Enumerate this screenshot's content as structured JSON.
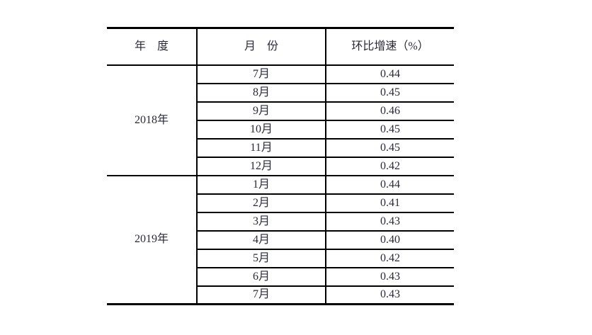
{
  "colors": {
    "text": "#2a2a38",
    "border": "#000000",
    "background": "#ffffff"
  },
  "table": {
    "headers": {
      "year": "年　度",
      "month": "月　份",
      "growth": "环比增速（%）"
    },
    "groups": [
      {
        "year": "2018年",
        "rows": [
          {
            "month": "7月",
            "value": "0.44"
          },
          {
            "month": "8月",
            "value": "0.45"
          },
          {
            "month": "9月",
            "value": "0.46"
          },
          {
            "month": "10月",
            "value": "0.45"
          },
          {
            "month": "11月",
            "value": "0.45"
          },
          {
            "month": "12月",
            "value": "0.42"
          }
        ]
      },
      {
        "year": "2019年",
        "rows": [
          {
            "month": "1月",
            "value": "0.44"
          },
          {
            "month": "2月",
            "value": "0.41"
          },
          {
            "month": "3月",
            "value": "0.43"
          },
          {
            "month": "4月",
            "value": "0.40"
          },
          {
            "month": "5月",
            "value": "0.42"
          },
          {
            "month": "6月",
            "value": "0.43"
          },
          {
            "month": "7月",
            "value": "0.43"
          }
        ]
      }
    ]
  },
  "chart_data": {
    "type": "table",
    "title": "",
    "columns": [
      "年度",
      "月份",
      "环比增速（%）"
    ],
    "rows": [
      [
        "2018年",
        "7月",
        0.44
      ],
      [
        "2018年",
        "8月",
        0.45
      ],
      [
        "2018年",
        "9月",
        0.46
      ],
      [
        "2018年",
        "10月",
        0.45
      ],
      [
        "2018年",
        "11月",
        0.45
      ],
      [
        "2018年",
        "12月",
        0.42
      ],
      [
        "2019年",
        "1月",
        0.44
      ],
      [
        "2019年",
        "2月",
        0.41
      ],
      [
        "2019年",
        "3月",
        0.43
      ],
      [
        "2019年",
        "4月",
        0.4
      ],
      [
        "2019年",
        "5月",
        0.42
      ],
      [
        "2019年",
        "6月",
        0.43
      ],
      [
        "2019年",
        "7月",
        0.43
      ]
    ]
  }
}
